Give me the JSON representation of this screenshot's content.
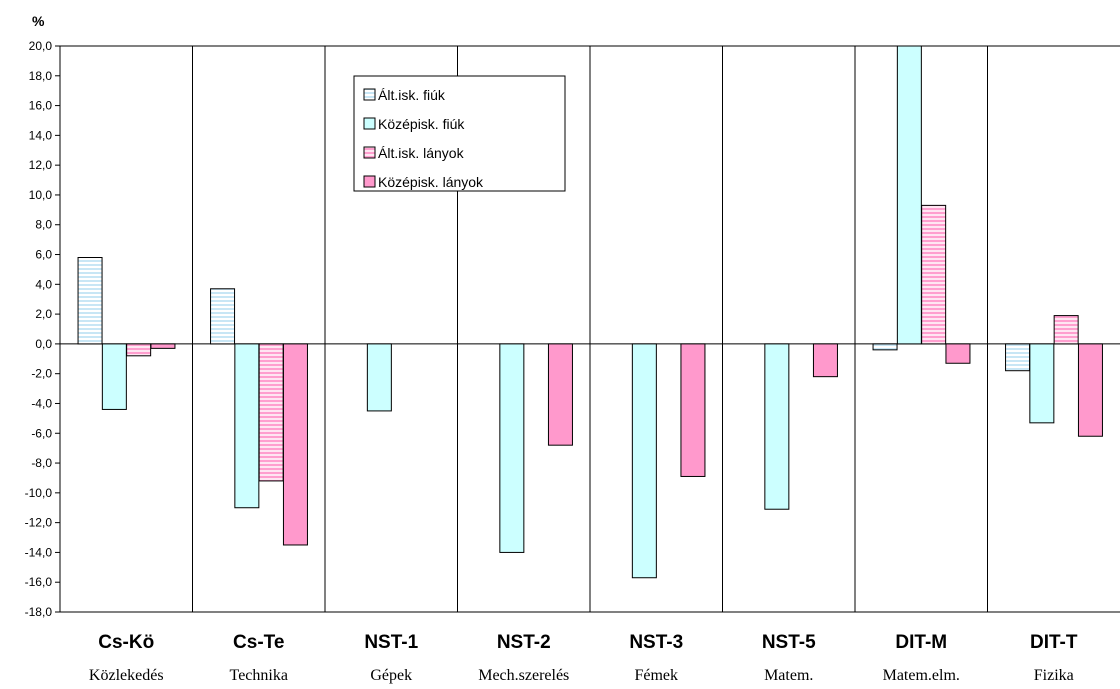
{
  "chart_data": {
    "type": "bar",
    "ylabel": "%",
    "ylim": [
      -18,
      20
    ],
    "ystep": 2,
    "grid": false,
    "legend_position": "top-center",
    "categories": [
      {
        "code": "Cs-Kö",
        "name": "Közlekedés"
      },
      {
        "code": "Cs-Te",
        "name": "Technika"
      },
      {
        "code": "NST-1",
        "name": "Gépek"
      },
      {
        "code": "NST-2",
        "name": "Mech.szerelés"
      },
      {
        "code": "NST-3",
        "name": "Fémek"
      },
      {
        "code": "NST-5",
        "name": "Matem."
      },
      {
        "code": "DIT-M",
        "name": "Matem.elm."
      },
      {
        "code": "DIT-T",
        "name": "Fizika"
      }
    ],
    "series": [
      {
        "name": "Ált.isk. fiúk",
        "fill": "#ddeeff",
        "pattern": "hstripe-light",
        "values": [
          5.8,
          3.7,
          null,
          null,
          null,
          null,
          -0.4,
          -1.8
        ]
      },
      {
        "name": "Középisk. fiúk",
        "fill": "#ccffff",
        "pattern": "solid",
        "values": [
          -4.4,
          -11.0,
          -4.5,
          -14.0,
          -15.7,
          -11.1,
          20.0,
          -5.3
        ]
      },
      {
        "name": "Ált.isk. lányok",
        "fill": "#ffb6d9",
        "pattern": "hstripe-pink",
        "values": [
          -0.8,
          -9.2,
          null,
          null,
          null,
          null,
          9.3,
          1.9
        ]
      },
      {
        "name": "Középisk. lányok",
        "fill": "#ff99cc",
        "pattern": "solid",
        "values": [
          -0.3,
          -13.5,
          null,
          -6.8,
          -8.9,
          -2.2,
          -1.3,
          -6.2
        ]
      }
    ]
  }
}
